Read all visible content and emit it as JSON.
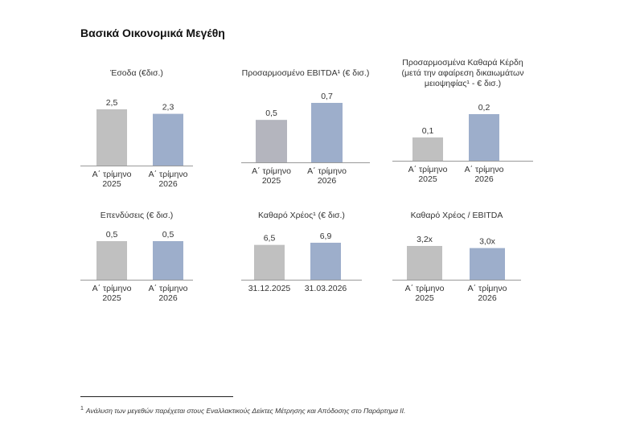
{
  "page_title": "Βασικά Οικονομικά Μεγέθη",
  "colors": {
    "grey": "#c0c0c0",
    "dark_grey": "#b4b5be",
    "blue": "#9daecb",
    "axis": "#999999",
    "text": "#333333"
  },
  "footnote": {
    "marker": "1",
    "text": "Ανάλυση των μεγεθών παρέχεται στους Εναλλακτικούς Δείκτες Μέτρησης και Απόδοσης στο Παράρτημα ΙΙ."
  },
  "chart_data": [
    {
      "type": "bar",
      "title": "Έσοδα (€δισ.)",
      "categories": [
        "Α΄ τρίμηνο 2025",
        "Α΄ τρίμηνο 2026"
      ],
      "values": [
        2.5,
        2.3
      ],
      "labels": [
        "2,5",
        "2,3"
      ],
      "colors": [
        "#c0c0c0",
        "#9daecb"
      ]
    },
    {
      "type": "bar",
      "title": "Προσαρμοσμένο EBITDA¹ (€ δισ.)",
      "categories": [
        "Α΄ τρίμηνο 2025",
        "Α΄ τρίμηνο 2026"
      ],
      "values": [
        0.5,
        0.7
      ],
      "labels": [
        "0,5",
        "0,7"
      ],
      "colors": [
        "#b4b5be",
        "#9daecb"
      ]
    },
    {
      "type": "bar",
      "title": "Προσαρμοσμένα Καθαρά Κέρδη (μετά την αφαίρεση δικαιωμάτων μειοψηφίας¹ - € δισ.)",
      "categories": [
        "Α΄ τρίμηνο 2025",
        "Α΄ τρίμηνο 2026"
      ],
      "values": [
        0.1,
        0.2
      ],
      "labels": [
        "0,1",
        "0,2"
      ],
      "colors": [
        "#c0c0c0",
        "#9daecb"
      ]
    },
    {
      "type": "bar",
      "title": "Επενδύσεις (€ δισ.)",
      "categories": [
        "Α΄ τρίμηνο 2025",
        "Α΄ τρίμηνο 2026"
      ],
      "values": [
        0.5,
        0.5
      ],
      "labels": [
        "0,5",
        "0,5"
      ],
      "colors": [
        "#c0c0c0",
        "#9daecb"
      ]
    },
    {
      "type": "bar",
      "title": "Καθαρό Χρέος¹ (€ δισ.)",
      "categories": [
        "31.12.2025",
        "31.03.2026"
      ],
      "values": [
        6.5,
        6.9
      ],
      "labels": [
        "6,5",
        "6,9"
      ],
      "colors": [
        "#c0c0c0",
        "#9daecb"
      ]
    },
    {
      "type": "bar",
      "title": "Καθαρό Χρέος / EBITDA",
      "categories": [
        "Α΄ τρίμηνο 2025",
        "Α΄ τρίμηνο 2026"
      ],
      "values": [
        3.2,
        3.0
      ],
      "labels": [
        "3,2x",
        "3,0x"
      ],
      "colors": [
        "#c0c0c0",
        "#9daecb"
      ]
    }
  ]
}
